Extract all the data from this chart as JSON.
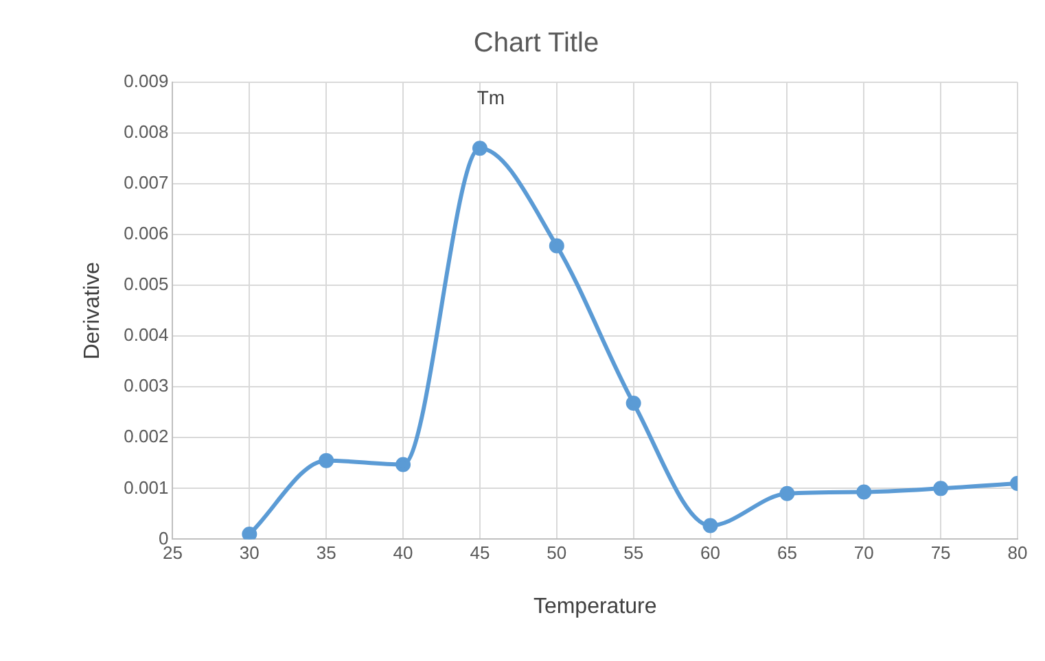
{
  "chart_data": {
    "type": "scatter",
    "title": "Chart Title",
    "xlabel": "Temperature",
    "ylabel": "Derivative",
    "x": [
      30,
      35,
      40,
      45,
      50,
      55,
      60,
      65,
      70,
      75,
      80
    ],
    "series": [
      {
        "type": "line",
        "color": "#5b9bd5",
        "values": [
          0.0001,
          0.00155,
          0.00147,
          0.0077,
          0.00578,
          0.00268,
          0.00027,
          0.0009,
          0.00093,
          0.001,
          0.0011
        ]
      }
    ],
    "xlim": [
      25,
      80
    ],
    "xticks": [
      25,
      30,
      35,
      40,
      45,
      50,
      55,
      60,
      65,
      70,
      75,
      80
    ],
    "ylim": [
      0,
      0.009
    ],
    "yticks": [
      0,
      0.001,
      0.002,
      0.003,
      0.004,
      0.005,
      0.006,
      0.007,
      0.008,
      0.009
    ],
    "annotations": [
      "Tm"
    ],
    "grid": true,
    "legend": false,
    "marker": "circle",
    "line_style": "solid"
  }
}
